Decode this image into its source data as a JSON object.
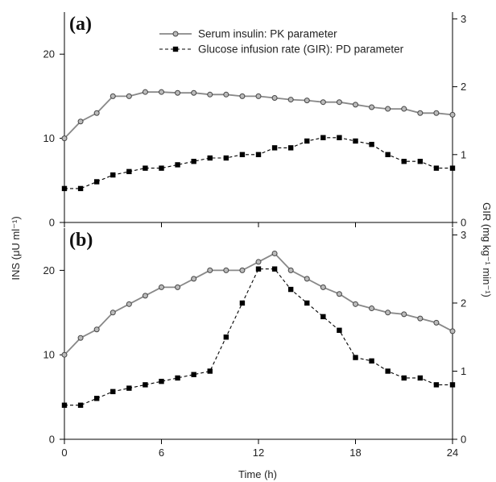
{
  "chart_data": [
    {
      "type": "line",
      "panel_label": "(a)",
      "x": [
        0,
        1,
        2,
        3,
        4,
        5,
        6,
        7,
        8,
        9,
        10,
        11,
        12,
        13,
        14,
        15,
        16,
        17,
        18,
        19,
        20,
        21,
        22,
        23,
        24
      ],
      "series": [
        {
          "name": "Serum insulin: PK parameter",
          "axis": "left",
          "values": [
            10,
            12,
            13,
            15,
            15,
            15.5,
            15.5,
            15.4,
            15.4,
            15.2,
            15.2,
            15,
            15,
            14.8,
            14.6,
            14.5,
            14.3,
            14.3,
            14,
            13.7,
            13.5,
            13.5,
            13,
            13,
            12.8
          ]
        },
        {
          "name": "Glucose infusion rate (GIR): PD parameter",
          "axis": "right",
          "values": [
            0.5,
            0.5,
            0.6,
            0.7,
            0.75,
            0.8,
            0.8,
            0.85,
            0.9,
            0.95,
            0.95,
            1.0,
            1.0,
            1.1,
            1.1,
            1.2,
            1.25,
            1.25,
            1.2,
            1.15,
            1.0,
            0.9,
            0.9,
            0.8,
            0.8
          ]
        }
      ],
      "xlim": [
        0,
        24
      ],
      "ylim": [
        0,
        25
      ],
      "y2lim": [
        0,
        3.1
      ],
      "yticks": [
        0,
        10,
        20
      ],
      "y2ticks": [
        0,
        1,
        2,
        3
      ],
      "xticks": [
        0,
        6,
        12,
        18,
        24
      ],
      "legend": "top-center"
    },
    {
      "type": "line",
      "panel_label": "(b)",
      "x": [
        0,
        1,
        2,
        3,
        4,
        5,
        6,
        7,
        8,
        9,
        10,
        11,
        12,
        13,
        14,
        15,
        16,
        17,
        18,
        19,
        20,
        21,
        22,
        23,
        24
      ],
      "series": [
        {
          "name": "Serum insulin: PK parameter",
          "axis": "left",
          "values": [
            10,
            12,
            13,
            15,
            16,
            17,
            18,
            18,
            19,
            20,
            20,
            20,
            21,
            22,
            20,
            19,
            18,
            17.2,
            16,
            15.5,
            15,
            14.8,
            14.3,
            13.8,
            12.8
          ]
        },
        {
          "name": "Glucose infusion rate (GIR): PD parameter",
          "axis": "right",
          "values": [
            0.5,
            0.5,
            0.6,
            0.7,
            0.75,
            0.8,
            0.85,
            0.9,
            0.95,
            1.0,
            1.5,
            2.0,
            2.5,
            2.5,
            2.2,
            2.0,
            1.8,
            1.6,
            1.2,
            1.15,
            1.0,
            0.9,
            0.9,
            0.8,
            0.8
          ]
        }
      ],
      "xlim": [
        0,
        24
      ],
      "ylim": [
        0,
        25
      ],
      "y2lim": [
        0,
        3.1
      ],
      "yticks": [
        0,
        10,
        20
      ],
      "y2ticks": [
        0,
        1,
        2,
        3
      ],
      "xticks": [
        0,
        6,
        12,
        18,
        24
      ]
    }
  ],
  "axes": {
    "xlabel": "Time (h)",
    "ylabel_left": "INS (μU ml⁻¹)",
    "ylabel_right": "GIR (mg kg⁻¹ min⁻¹)"
  },
  "colors": {
    "insulin_line": "#888888",
    "insulin_marker_fill": "#bbbbbb",
    "insulin_marker_stroke": "#444444",
    "gir_line": "#000000",
    "gir_marker": "#000000",
    "axis": "#000000"
  }
}
